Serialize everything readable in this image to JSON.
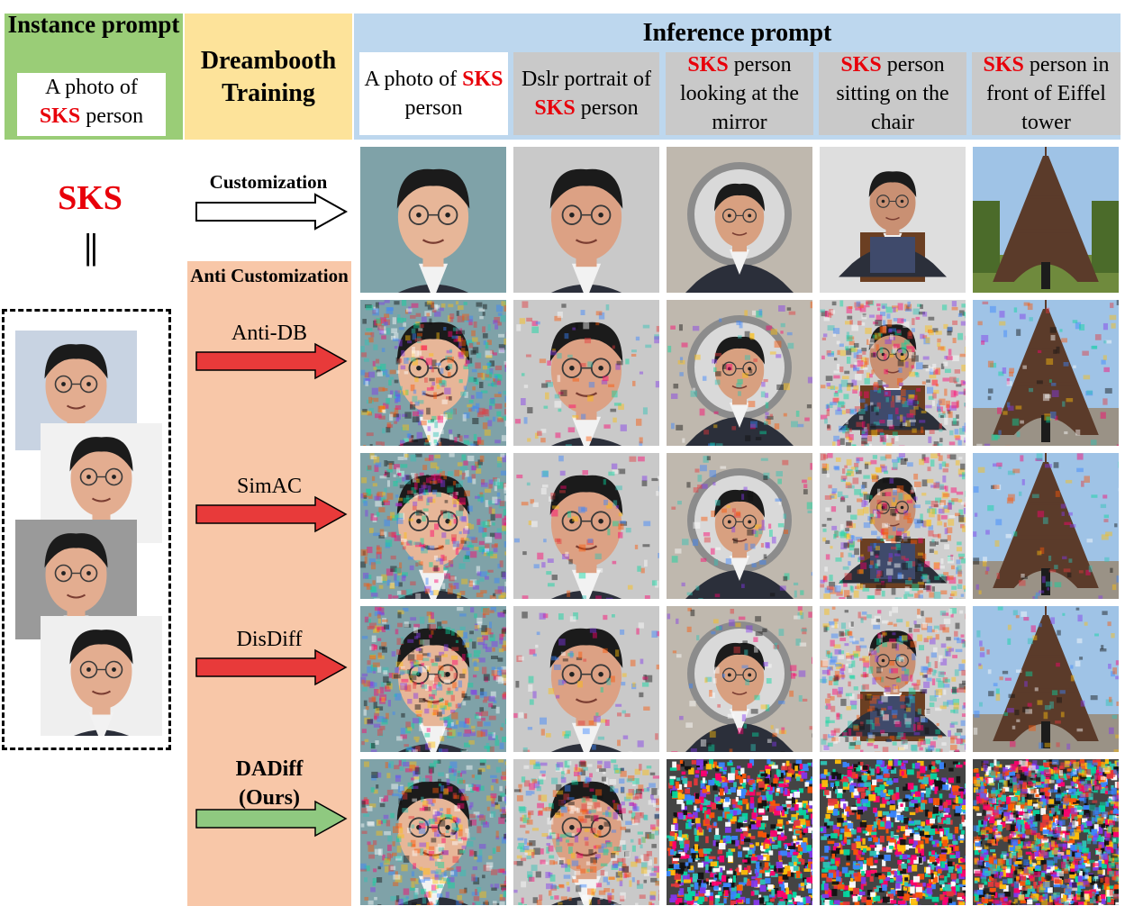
{
  "instance": {
    "title": "Instance prompt",
    "prompt_pre": "A photo of",
    "prompt_sks": "SKS",
    "prompt_post": "person"
  },
  "training": {
    "title": "Dreambooth Training"
  },
  "inference": {
    "title": "Inference prompt",
    "prompts": [
      {
        "pre": "A photo of",
        "sks": "SKS",
        "post": "person",
        "shade": "white"
      },
      {
        "pre": "Dslr portrait of",
        "sks": "SKS",
        "post": "person",
        "shade": "grey"
      },
      {
        "pre": "",
        "sks": "SKS",
        "post": "person looking at the mirror",
        "shade": "grey"
      },
      {
        "pre": "",
        "sks": "SKS",
        "post": "person sitting on the chair",
        "shade": "grey"
      },
      {
        "pre": "",
        "sks": "SKS",
        "post": "person in front of Eiffel tower",
        "shade": "grey"
      }
    ]
  },
  "identity": {
    "token": "SKS",
    "equals": "||"
  },
  "customization_label": "Customization",
  "anti_title": "Anti Customization",
  "methods": [
    {
      "name": "Anti-DB",
      "arrow": "#e83a3a",
      "bold": false
    },
    {
      "name": "SimAC",
      "arrow": "#e83a3a",
      "bold": false
    },
    {
      "name": "DisDiff",
      "arrow": "#e83a3a",
      "bold": false
    },
    {
      "name": "DADiff (Ours)",
      "arrow": "#8fc980",
      "bold": true
    }
  ],
  "colors": {
    "sks_red": "#e8000a",
    "green": "#9acd77",
    "yellow": "#fde39a",
    "blue": "#bdd7ee",
    "peach": "#f8c7a8"
  }
}
